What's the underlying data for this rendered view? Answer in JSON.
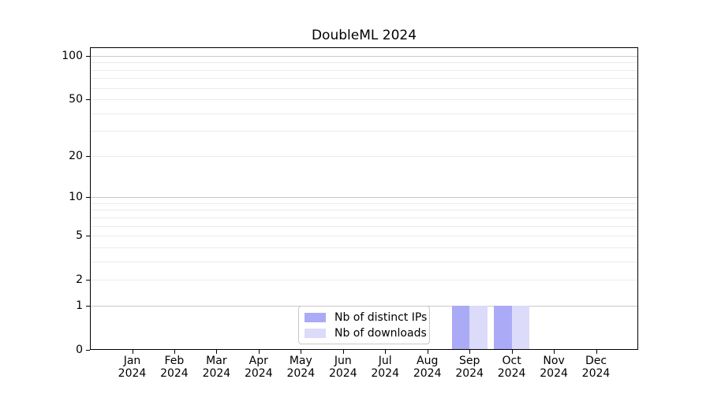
{
  "title": "DoubleML 2024",
  "legend": {
    "items": [
      {
        "label": "Nb of distinct IPs",
        "color": "#aaaaf7"
      },
      {
        "label": "Nb of downloads",
        "color": "#dcdbf9"
      }
    ]
  },
  "chart_data": {
    "type": "bar",
    "title": "DoubleML 2024",
    "categories": [
      "Jan 2024",
      "Feb 2024",
      "Mar 2024",
      "Apr 2024",
      "May 2024",
      "Jun 2024",
      "Jul 2024",
      "Aug 2024",
      "Sep 2024",
      "Oct 2024",
      "Nov 2024",
      "Dec 2024"
    ],
    "series": [
      {
        "name": "Nb of distinct IPs",
        "color": "#aaaaf7",
        "values": [
          0,
          0,
          0,
          0,
          0,
          0,
          0,
          0,
          1,
          1,
          0,
          0
        ]
      },
      {
        "name": "Nb of downloads",
        "color": "#dcdbf9",
        "values": [
          0,
          0,
          0,
          0,
          0,
          0,
          0,
          0,
          1,
          1,
          0,
          0
        ]
      }
    ],
    "xlabel": "",
    "ylabel": "",
    "yscale": "log1p",
    "ylim": [
      0,
      115
    ],
    "yticks": [
      0,
      1,
      2,
      5,
      10,
      20,
      50,
      100
    ],
    "major_gridlines": [
      1,
      10,
      100
    ],
    "minor_gridlines": [
      2,
      3,
      4,
      5,
      6,
      7,
      8,
      9,
      20,
      30,
      40,
      50,
      60,
      70,
      80,
      90
    ],
    "grid": "on",
    "legend_position": "inside lower center"
  },
  "colors": {
    "spine": "#000000",
    "grid_major": "#c9c9c9",
    "grid_minor": "#ebebeb",
    "background": "#ffffff"
  }
}
